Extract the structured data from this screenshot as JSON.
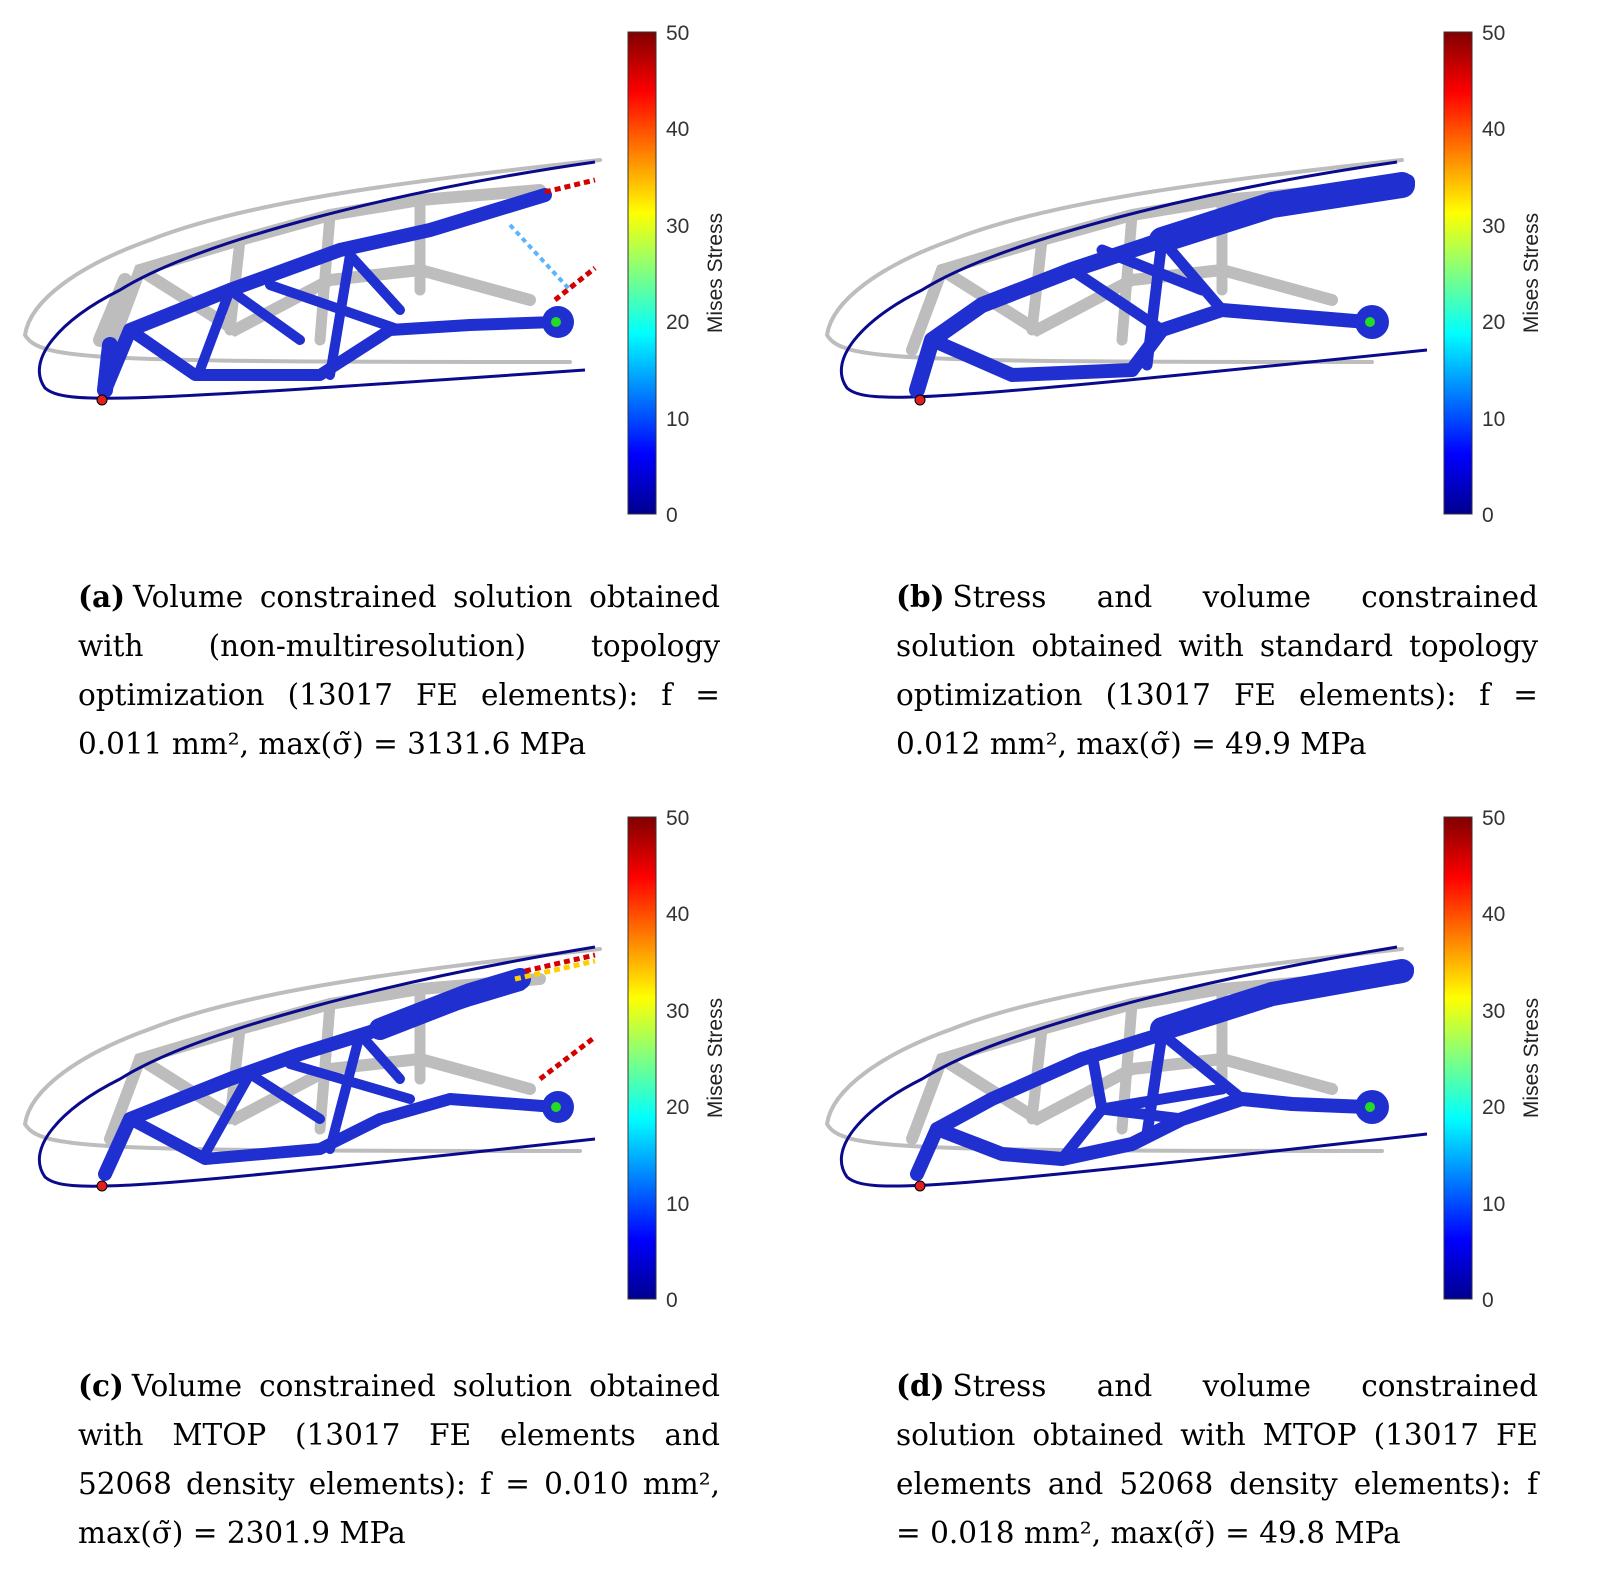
{
  "figure": {
    "panels": [
      {
        "id": "a",
        "tag": "(a)",
        "caption": "Volume constrained solution obtained with (non-multiresolution) topology optimization (13017 FE elements): f = 0.011 mm², max(σ̃) = 3131.6 MPa",
        "colorbar": {
          "title": "Mises Stress",
          "ticks": [
            "0",
            "10",
            "20",
            "30",
            "40",
            "50"
          ]
        }
      },
      {
        "id": "b",
        "tag": "(b)",
        "caption": "Stress and volume constrained solution obtained with standard topology optimization (13017 FE elements): f = 0.012 mm², max(σ̃) = 49.9 MPa",
        "colorbar": {
          "title": "Mises Stress",
          "ticks": [
            "0",
            "10",
            "20",
            "30",
            "40",
            "50"
          ]
        }
      },
      {
        "id": "c",
        "tag": "(c)",
        "caption": "Volume constrained solution obtained with MTOP (13017 FE elements and 52068 density elements): f = 0.010 mm², max(σ̃) = 2301.9 MPa",
        "colorbar": {
          "title": "Mises Stress",
          "ticks": [
            "0",
            "10",
            "20",
            "30",
            "40",
            "50"
          ]
        }
      },
      {
        "id": "d",
        "tag": "(d)",
        "caption": "Stress and volume constrained solution obtained with MTOP (13017 FE elements and 52068 density elements): f = 0.018 mm², max(σ̃) = 49.8 MPa",
        "colorbar": {
          "title": "Mises Stress",
          "ticks": [
            "0",
            "10",
            "20",
            "30",
            "40",
            "50"
          ]
        }
      }
    ],
    "colors": {
      "outline": "#0a0a8c",
      "undeformed": "#bdbdbd",
      "structure": "#1f2fd0",
      "support_point": "#e02020",
      "load_point": "#22dd22",
      "hot": "#d40000"
    }
  }
}
